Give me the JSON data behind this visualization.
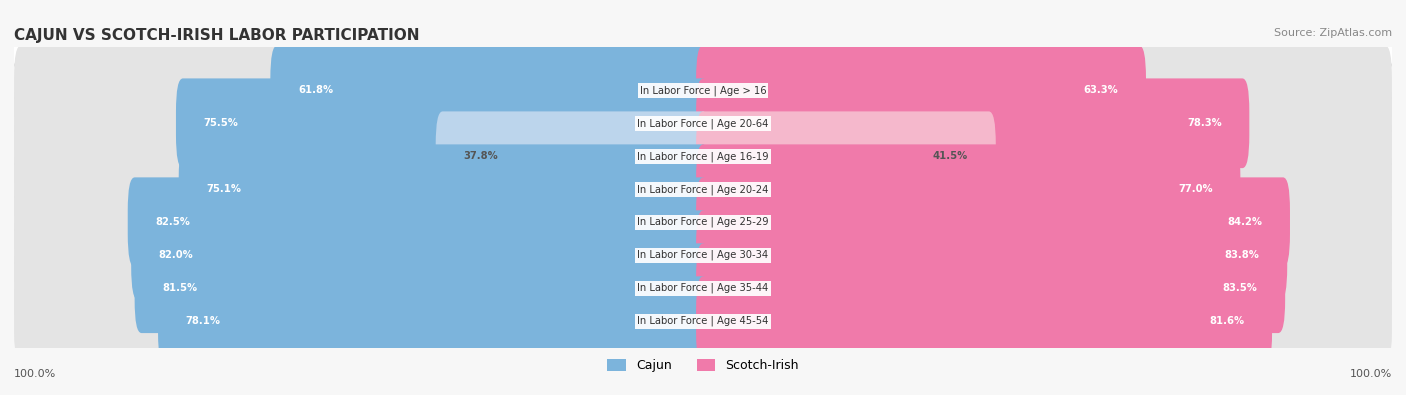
{
  "title": "CAJUN VS SCOTCH-IRISH LABOR PARTICIPATION",
  "source": "Source: ZipAtlas.com",
  "categories": [
    "In Labor Force | Age > 16",
    "In Labor Force | Age 20-64",
    "In Labor Force | Age 16-19",
    "In Labor Force | Age 20-24",
    "In Labor Force | Age 25-29",
    "In Labor Force | Age 30-34",
    "In Labor Force | Age 35-44",
    "In Labor Force | Age 45-54"
  ],
  "cajun_values": [
    61.8,
    75.5,
    37.8,
    75.1,
    82.5,
    82.0,
    81.5,
    78.1
  ],
  "scotch_values": [
    63.3,
    78.3,
    41.5,
    77.0,
    84.2,
    83.8,
    83.5,
    81.6
  ],
  "cajun_color": "#7cb4dc",
  "cajun_color_light": "#bcd5ec",
  "scotch_color": "#f07aaa",
  "scotch_color_light": "#f5b8cc",
  "row_bg_color": "#f0f0f0",
  "bar_bg_color": "#e4e4e4",
  "background_color": "#f7f7f7",
  "max_value": 100.0,
  "legend_cajun": "Cajun",
  "legend_scotch": "Scotch-Irish",
  "bottom_left_label": "100.0%",
  "bottom_right_label": "100.0%"
}
